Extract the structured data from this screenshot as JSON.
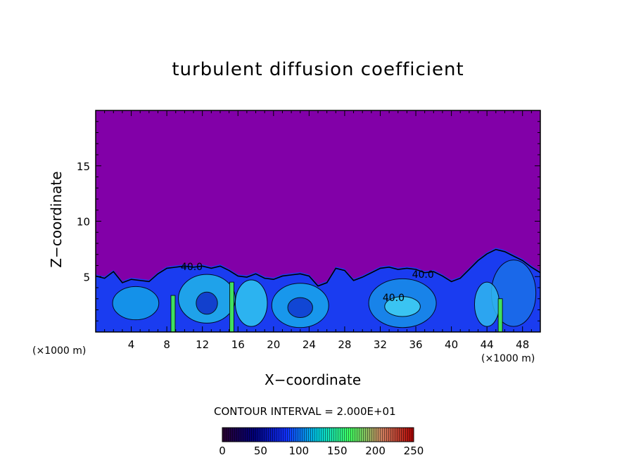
{
  "chart_data": {
    "type": "heatmap",
    "title": "turbulent diffusion coefficient",
    "xlabel": "X−coordinate",
    "ylabel": "Z−coordinate",
    "x_unit": "(×1000 m)",
    "xlim": [
      0,
      50
    ],
    "ylim": [
      0,
      20
    ],
    "x_ticks": [
      4,
      8,
      12,
      16,
      20,
      24,
      28,
      32,
      36,
      40,
      44,
      48
    ],
    "y_ticks": [
      5,
      10,
      15
    ],
    "contour_interval": "CONTOUR INTERVAL = 2.000E+01",
    "contour_labels": [
      {
        "text": "40.0",
        "x": 10.8,
        "z": 5.6
      },
      {
        "text": "40.0",
        "x": 36.8,
        "z": 4.9
      },
      {
        "text": "40.0",
        "x": 33.5,
        "z": 2.8
      }
    ],
    "colorbar": {
      "ticks": [
        0,
        50,
        100,
        150,
        200,
        250
      ],
      "range": [
        0,
        250
      ],
      "colors": [
        "#2a0030",
        "#00007a",
        "#1030ff",
        "#00d0e0",
        "#40ff60",
        "#d08060",
        "#b00000"
      ]
    },
    "background_value_color": "#8200a8",
    "field_boundary_profile": [
      [
        0,
        5.2
      ],
      [
        1,
        5.0
      ],
      [
        2,
        5.6
      ],
      [
        3,
        4.6
      ],
      [
        4,
        4.9
      ],
      [
        5,
        4.8
      ],
      [
        6,
        4.7
      ],
      [
        7,
        5.4
      ],
      [
        8,
        5.9
      ],
      [
        9,
        6.0
      ],
      [
        10,
        6.1
      ],
      [
        11,
        6.0
      ],
      [
        12,
        6.1
      ],
      [
        13,
        5.9
      ],
      [
        14,
        6.1
      ],
      [
        15,
        5.7
      ],
      [
        16,
        5.2
      ],
      [
        17,
        5.1
      ],
      [
        18,
        5.4
      ],
      [
        19,
        5.0
      ],
      [
        20,
        4.9
      ],
      [
        21,
        5.2
      ],
      [
        22,
        5.3
      ],
      [
        23,
        5.4
      ],
      [
        24,
        5.2
      ],
      [
        25,
        4.3
      ],
      [
        26,
        4.6
      ],
      [
        27,
        5.9
      ],
      [
        28,
        5.7
      ],
      [
        29,
        4.8
      ],
      [
        30,
        5.1
      ],
      [
        31,
        5.5
      ],
      [
        32,
        5.9
      ],
      [
        33,
        6.0
      ],
      [
        34,
        5.8
      ],
      [
        35,
        5.9
      ],
      [
        36,
        5.8
      ],
      [
        37,
        5.5
      ],
      [
        38,
        5.6
      ],
      [
        39,
        5.2
      ],
      [
        40,
        4.7
      ],
      [
        41,
        5.0
      ],
      [
        42,
        5.8
      ],
      [
        43,
        6.6
      ],
      [
        44,
        7.2
      ],
      [
        45,
        7.6
      ],
      [
        46,
        7.4
      ],
      [
        47,
        7.0
      ],
      [
        48,
        6.6
      ],
      [
        49,
        6.0
      ],
      [
        50,
        5.5
      ]
    ]
  }
}
